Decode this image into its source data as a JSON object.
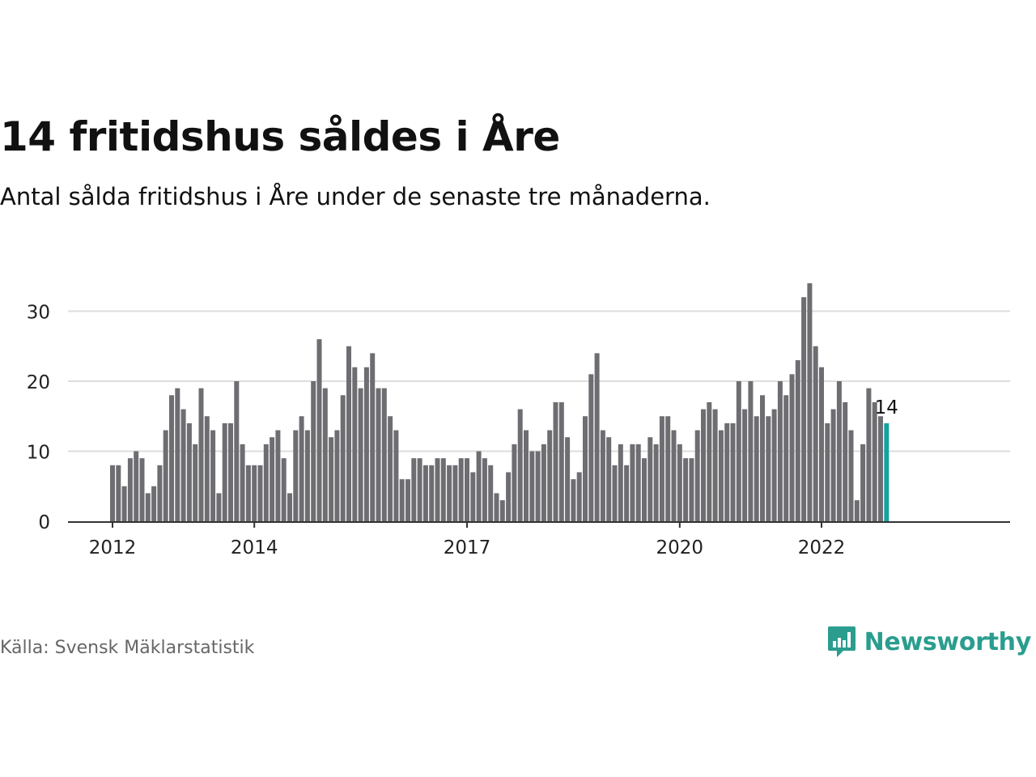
{
  "title": "14 fritidshus såldes i Åre",
  "subtitle": "Antal sålda fritidshus i Åre under de senaste tre månaderna.",
  "source": "Källa: Svensk Mäklarstatistik",
  "brand": {
    "name": "Newsworthy",
    "icon": "newsworthy-bar-chart-logo-icon",
    "color": "#2a9d8f"
  },
  "colors": {
    "bar": "#6e6d72",
    "highlight": "#17a2a0",
    "grid": "#dddddd",
    "axis": "#333333"
  },
  "chart_data": {
    "type": "bar",
    "title": "14 fritidshus såldes i Åre",
    "subtitle": "Antal sålda fritidshus i Åre under de senaste tre månaderna.",
    "xlabel": "",
    "ylabel": "",
    "ylim": [
      0,
      34
    ],
    "yticks": [
      0,
      10,
      20,
      30
    ],
    "grid": true,
    "legend": "none",
    "x_tick_labels": [
      {
        "label": "2012",
        "index": 0
      },
      {
        "label": "2014",
        "index": 24
      },
      {
        "label": "2017",
        "index": 60
      },
      {
        "label": "2020",
        "index": 96
      },
      {
        "label": "2022",
        "index": 120
      }
    ],
    "highlight": {
      "index": 131,
      "label": "14"
    },
    "values": [
      8,
      8,
      5,
      9,
      10,
      9,
      4,
      5,
      8,
      13,
      18,
      19,
      16,
      14,
      11,
      19,
      15,
      13,
      4,
      14,
      14,
      20,
      11,
      8,
      8,
      8,
      11,
      12,
      13,
      9,
      4,
      13,
      15,
      13,
      20,
      26,
      19,
      12,
      13,
      18,
      25,
      22,
      19,
      22,
      24,
      19,
      19,
      15,
      13,
      6,
      6,
      9,
      9,
      8,
      8,
      9,
      9,
      8,
      8,
      9,
      9,
      7,
      10,
      9,
      8,
      4,
      3,
      7,
      11,
      16,
      13,
      10,
      10,
      11,
      13,
      17,
      17,
      12,
      6,
      7,
      15,
      21,
      24,
      13,
      12,
      8,
      11,
      8,
      11,
      11,
      9,
      12,
      11,
      15,
      15,
      13,
      11,
      9,
      9,
      13,
      16,
      17,
      16,
      13,
      14,
      14,
      20,
      16,
      20,
      15,
      18,
      15,
      16,
      20,
      18,
      21,
      23,
      32,
      34,
      25,
      22,
      14,
      16,
      20,
      17,
      13,
      3,
      11,
      19,
      17,
      15,
      14
    ]
  }
}
